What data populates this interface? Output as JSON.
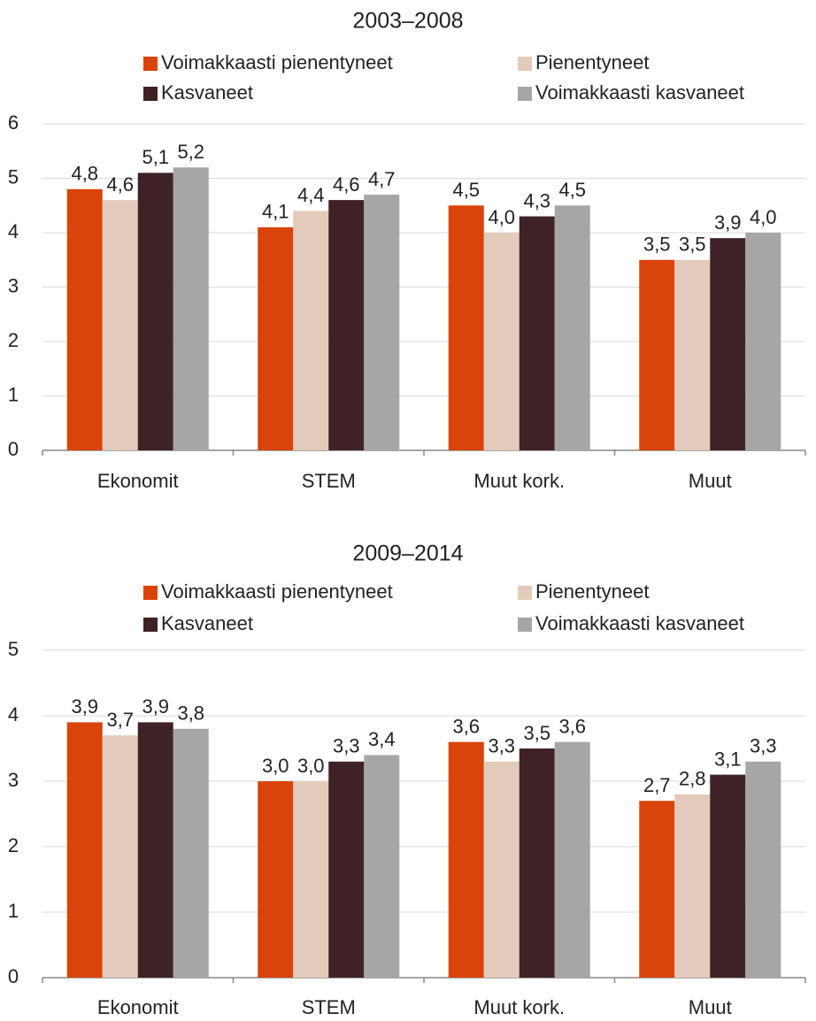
{
  "chart_data": [
    {
      "type": "bar",
      "title": "2003–2008",
      "categories": [
        "Ekonomit",
        "STEM",
        "Muut kork.",
        "Muut"
      ],
      "series": [
        {
          "name": "Voimakkaasti pienentyneet",
          "color": "#d9440a",
          "values": [
            4.8,
            4.1,
            4.5,
            3.5
          ],
          "value_labels": [
            "4,8",
            "4,1",
            "4,5",
            "3,5"
          ]
        },
        {
          "name": "Pienentyneet",
          "color": "#e3cbbb",
          "values": [
            4.6,
            4.4,
            4.0,
            3.5
          ],
          "value_labels": [
            "4,6",
            "4,4",
            "4,0",
            "3,5"
          ]
        },
        {
          "name": "Kasvaneet",
          "color": "#3e2225",
          "values": [
            5.1,
            4.6,
            4.3,
            3.9
          ],
          "value_labels": [
            "5,1",
            "4,6",
            "4,3",
            "3,9"
          ]
        },
        {
          "name": "Voimakkaasti kasvaneet",
          "color": "#a6a6a6",
          "values": [
            5.2,
            4.7,
            4.5,
            4.0
          ],
          "value_labels": [
            "5,2",
            "4,7",
            "4,5",
            "4,0"
          ]
        }
      ],
      "ylim": [
        0,
        6
      ],
      "yticks": [
        0,
        1,
        2,
        3,
        4,
        5,
        6
      ],
      "grid": true
    },
    {
      "type": "bar",
      "title": "2009–2014",
      "categories": [
        "Ekonomit",
        "STEM",
        "Muut kork.",
        "Muut"
      ],
      "series": [
        {
          "name": "Voimakkaasti pienentyneet",
          "color": "#d9440a",
          "values": [
            3.9,
            3.0,
            3.6,
            2.7
          ],
          "value_labels": [
            "3,9",
            "3,0",
            "3,6",
            "2,7"
          ]
        },
        {
          "name": "Pienentyneet",
          "color": "#e3cbbb",
          "values": [
            3.7,
            3.0,
            3.3,
            2.8
          ],
          "value_labels": [
            "3,7",
            "3,0",
            "3,3",
            "2,8"
          ]
        },
        {
          "name": "Kasvaneet",
          "color": "#3e2225",
          "values": [
            3.9,
            3.3,
            3.5,
            3.1
          ],
          "value_labels": [
            "3,9",
            "3,3",
            "3,5",
            "3,1"
          ]
        },
        {
          "name": "Voimakkaasti kasvaneet",
          "color": "#a6a6a6",
          "values": [
            3.8,
            3.4,
            3.6,
            3.3
          ],
          "value_labels": [
            "3,8",
            "3,4",
            "3,6",
            "3,3"
          ]
        }
      ],
      "ylim": [
        0,
        5
      ],
      "yticks": [
        0,
        1,
        2,
        3,
        4,
        5
      ],
      "grid": true
    }
  ]
}
